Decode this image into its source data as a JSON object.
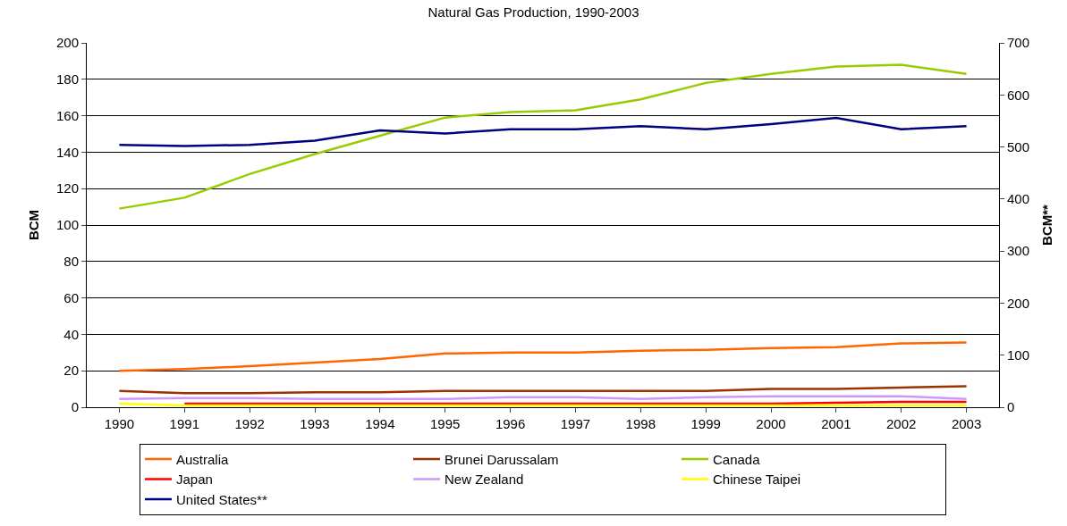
{
  "chart_data": {
    "type": "line",
    "title": "Natural Gas Production, 1990-2003",
    "ylabel": "BCM",
    "y2label": "BCM**",
    "categories": [
      "1990",
      "1991",
      "1992",
      "1993",
      "1994",
      "1995",
      "1996",
      "1997",
      "1998",
      "1999",
      "2000",
      "2001",
      "2002",
      "2003"
    ],
    "series": [
      {
        "name": "Australia",
        "color": "#ff6600",
        "values": [
          20,
          21,
          22.5,
          24.5,
          26.5,
          29.5,
          30,
          30,
          31,
          31.5,
          32.5,
          33,
          35,
          35.5
        ]
      },
      {
        "name": "Brunei Darussalam",
        "color": "#993300",
        "values": [
          9,
          7.7,
          7.7,
          8.2,
          8.2,
          9,
          9,
          9,
          9,
          9,
          10,
          10,
          10.8,
          11.5
        ]
      },
      {
        "name": "Canada",
        "color": "#99cc00",
        "values": [
          109,
          115,
          128,
          139,
          149,
          159,
          162,
          163,
          169,
          178,
          183,
          187,
          188,
          183
        ]
      },
      {
        "name": "Japan",
        "color": "#ff0000",
        "values": [
          null,
          2,
          2,
          2,
          2,
          2,
          2,
          2,
          2,
          2,
          2,
          2.5,
          3,
          3
        ]
      },
      {
        "name": "New Zealand",
        "color": "#cc99ff",
        "values": [
          4.5,
          5,
          5,
          4.5,
          4.5,
          4.5,
          5.5,
          5.5,
          4.5,
          5.5,
          6,
          6,
          6,
          4.5
        ]
      },
      {
        "name": "Chinese Taipei",
        "color": "#ffff00",
        "values": [
          2,
          1,
          1,
          1,
          1,
          1,
          1,
          1,
          1,
          1,
          1,
          1,
          1,
          1
        ]
      },
      {
        "name": "United States**",
        "color": "#000080",
        "axis": "y2",
        "values": [
          504,
          502,
          504,
          512,
          532,
          526,
          534,
          534,
          540,
          534,
          544,
          556,
          534,
          540
        ]
      }
    ],
    "ylim": [
      0,
      200
    ],
    "yticks": [
      0,
      20,
      40,
      60,
      80,
      100,
      120,
      140,
      160,
      180,
      200
    ],
    "y2lim": [
      0,
      700
    ],
    "y2ticks": [
      0,
      100,
      200,
      300,
      400,
      500,
      600,
      700
    ],
    "grid": "y",
    "legend": "bottom",
    "marker": "none",
    "line_style": "solid"
  }
}
